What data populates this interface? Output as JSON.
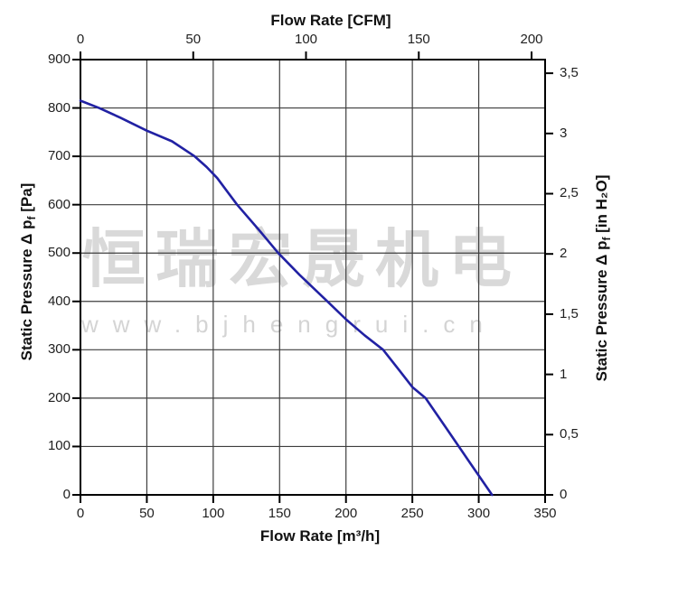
{
  "watermark": {
    "brand": "恒瑞宏晟机电",
    "url": "www.bjhengrui.cn",
    "color": "#d9d9d9"
  },
  "colors": {
    "background": "#ffffff",
    "axis": "#000000",
    "grid": "#3e3e3e",
    "curve": "#2121a3",
    "text": "#1f1f1f"
  },
  "chart_data": {
    "type": "line",
    "title": "",
    "legend": "none",
    "grid": {
      "show": true,
      "color": "#3e3e3e",
      "x_step_m3h": 50,
      "y_step_pa": 100
    },
    "axes": {
      "bottom": {
        "title": "Flow Rate [m³/h]",
        "range": [
          0,
          350
        ],
        "ticks": [
          0,
          50,
          100,
          150,
          200,
          250,
          300,
          350
        ]
      },
      "top": {
        "title": "Flow Rate [CFM]",
        "ticks": [
          0,
          50,
          100,
          150,
          200
        ],
        "m3h_per_cfm": 1.699
      },
      "left": {
        "title_pre": "Static Pressure Δ p",
        "title_sub": "f",
        "title_post": " [Pa]",
        "range": [
          0,
          900
        ],
        "ticks": [
          0,
          100,
          200,
          300,
          400,
          500,
          600,
          700,
          800,
          900
        ]
      },
      "right": {
        "title_pre": "Static Pressure Δ p",
        "title_sub": "f",
        "title_post": " [in H₂O]",
        "ticks": [
          0,
          0.5,
          1,
          1.5,
          2,
          2.5,
          3,
          3.5
        ],
        "tick_labels": [
          "0",
          "0,5",
          "1",
          "1,5",
          "2",
          "2,5",
          "3",
          "3,5"
        ],
        "pa_per_in_h2o": 249.089
      }
    },
    "series": [
      {
        "name": "static-pressure-curve",
        "color": "#2121a3",
        "x_unit": "m³/h",
        "y_unit": "Pa",
        "points": [
          [
            0,
            815
          ],
          [
            14,
            800
          ],
          [
            30,
            780
          ],
          [
            50,
            753
          ],
          [
            69,
            731
          ],
          [
            86,
            700
          ],
          [
            95,
            678
          ],
          [
            103,
            655
          ],
          [
            118,
            600
          ],
          [
            135,
            546
          ],
          [
            149,
            500
          ],
          [
            165,
            455
          ],
          [
            186,
            400
          ],
          [
            200,
            363
          ],
          [
            214,
            330
          ],
          [
            228,
            300
          ],
          [
            240,
            258
          ],
          [
            250,
            223
          ],
          [
            260,
            200
          ],
          [
            275,
            140
          ],
          [
            285,
            100
          ],
          [
            295,
            60
          ],
          [
            310,
            0
          ]
        ]
      }
    ]
  }
}
